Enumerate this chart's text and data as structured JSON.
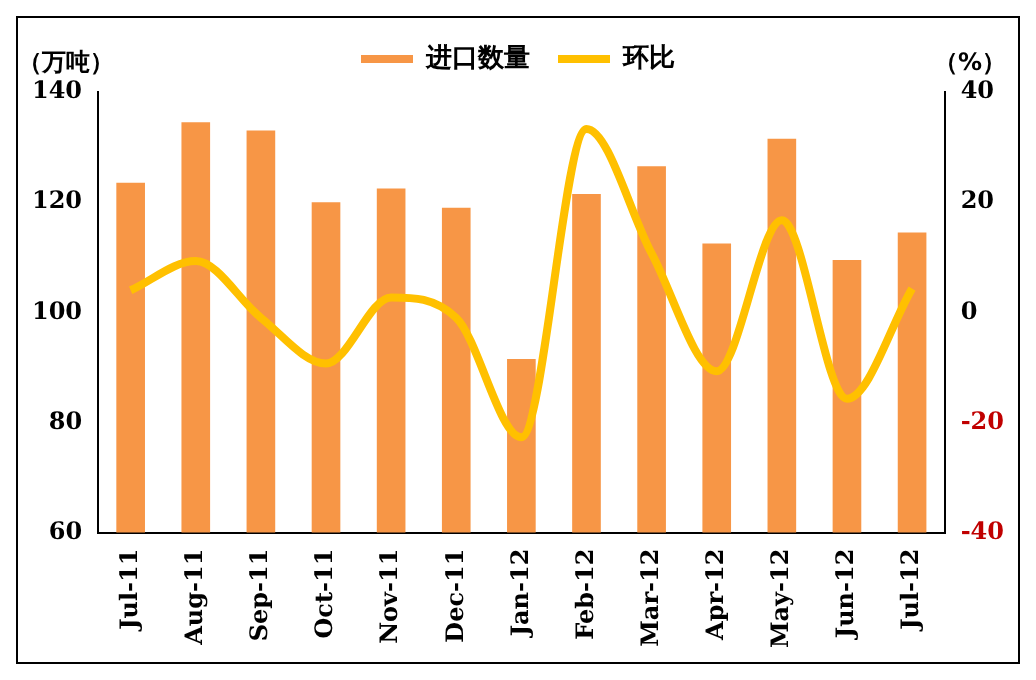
{
  "chart_data": {
    "type": "bar",
    "ylabel": "（万吨）",
    "y2label": "（%）",
    "categories": [
      "Jul-11",
      "Aug-11",
      "Sep-11",
      "Oct-11",
      "Nov-11",
      "Dec-11",
      "Jan-12",
      "Feb-12",
      "Mar-12",
      "Apr-12",
      "May-12",
      "Jun-12",
      "Jul-12"
    ],
    "series": [
      {
        "name": "进口数量",
        "color": "#f79646",
        "values": [
          123.5,
          134.5,
          133,
          120,
          122.5,
          119,
          91.5,
          121.5,
          126.5,
          112.5,
          131.5,
          109.5,
          114.5
        ]
      },
      {
        "name": "环比",
        "type": "line",
        "axis": "y2",
        "color": "#ffc000",
        "values": [
          4,
          9.3,
          -1,
          -9.3,
          2.7,
          -1,
          -22.7,
          33.3,
          10.7,
          -10.7,
          16.7,
          -15.7,
          4.3
        ]
      }
    ],
    "ylim": [
      60,
      140
    ],
    "yticks": [
      60,
      80,
      100,
      120,
      140
    ],
    "y2lim": [
      -40,
      40
    ],
    "y2ticks": [
      -40,
      -20,
      0,
      20,
      40
    ],
    "grid": false,
    "legend": "top",
    "marker": "none"
  }
}
